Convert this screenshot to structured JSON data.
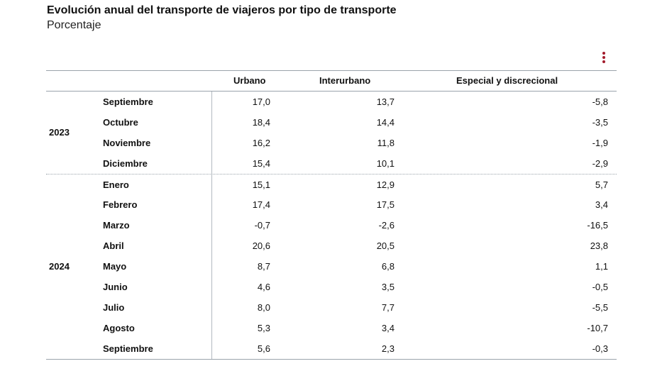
{
  "title": "Evolución anual del transporte de viajeros por tipo de transporte",
  "subtitle": "Porcentaje",
  "menu_icon": "kebab-menu-icon",
  "accent_color": "#a31b2c",
  "chart_data": {
    "type": "table",
    "title": "Evolución anual del transporte de viajeros por tipo de transporte",
    "subtitle": "Porcentaje",
    "columns": [
      "Urbano",
      "Interurbano",
      "Especial y discrecional"
    ],
    "groups": [
      {
        "year": "2023",
        "rows": [
          {
            "month": "Septiembre",
            "urbano": "17,0",
            "interurbano": "13,7",
            "especial": "-5,8"
          },
          {
            "month": "Octubre",
            "urbano": "18,4",
            "interurbano": "14,4",
            "especial": "-3,5"
          },
          {
            "month": "Noviembre",
            "urbano": "16,2",
            "interurbano": "11,8",
            "especial": "-1,9"
          },
          {
            "month": "Diciembre",
            "urbano": "15,4",
            "interurbano": "10,1",
            "especial": "-2,9"
          }
        ]
      },
      {
        "year": "2024",
        "rows": [
          {
            "month": "Enero",
            "urbano": "15,1",
            "interurbano": "12,9",
            "especial": "5,7"
          },
          {
            "month": "Febrero",
            "urbano": "17,4",
            "interurbano": "17,5",
            "especial": "3,4"
          },
          {
            "month": "Marzo",
            "urbano": "-0,7",
            "interurbano": "-2,6",
            "especial": "-16,5"
          },
          {
            "month": "Abril",
            "urbano": "20,6",
            "interurbano": "20,5",
            "especial": "23,8"
          },
          {
            "month": "Mayo",
            "urbano": "8,7",
            "interurbano": "6,8",
            "especial": "1,1"
          },
          {
            "month": "Junio",
            "urbano": "4,6",
            "interurbano": "3,5",
            "especial": "-0,5"
          },
          {
            "month": "Julio",
            "urbano": "8,0",
            "interurbano": "7,7",
            "especial": "-5,5"
          },
          {
            "month": "Agosto",
            "urbano": "5,3",
            "interurbano": "3,4",
            "especial": "-10,7"
          },
          {
            "month": "Septiembre",
            "urbano": "5,6",
            "interurbano": "2,3",
            "especial": "-0,3"
          }
        ]
      }
    ]
  }
}
